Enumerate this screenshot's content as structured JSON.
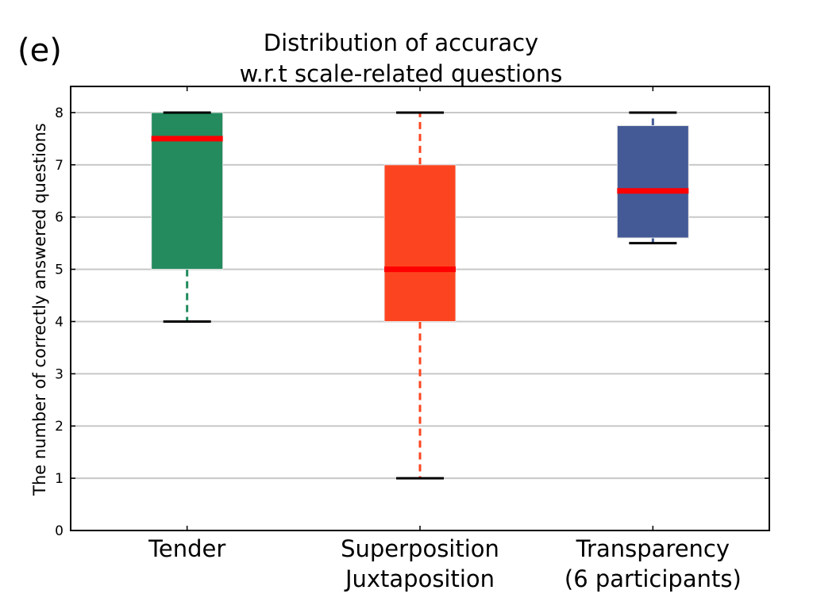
{
  "chart_data": {
    "type": "boxplot",
    "panel_label": "(e)",
    "title": "Distribution of accuracy",
    "subtitle": "w.r.t scale-related questions",
    "xlabel": "",
    "ylabel": "The number of correctly answered questions",
    "ylim": [
      0,
      8.5
    ],
    "yticks": [
      "0",
      "1",
      "2",
      "3",
      "4",
      "5",
      "6",
      "7",
      "8"
    ],
    "grid": "horizontal",
    "categories": [
      {
        "line1": "Tender",
        "line2": ""
      },
      {
        "line1": "Superposition",
        "line2": "Juxtaposition"
      },
      {
        "line1": "Transparency",
        "line2": "(6 participants)"
      }
    ],
    "boxes": [
      {
        "whisker_low": 4,
        "q1": 5,
        "median": 7.5,
        "q3": 8,
        "whisker_high": 8,
        "color": "#238b5e"
      },
      {
        "whisker_low": 1,
        "q1": 4,
        "median": 5,
        "q3": 7,
        "whisker_high": 8,
        "color": "#fc4520"
      },
      {
        "whisker_low": 5.5,
        "q1": 5.6,
        "median": 6.5,
        "q3": 7.75,
        "whisker_high": 8,
        "color": "#445a96"
      }
    ],
    "median_color": "#ff0000"
  }
}
